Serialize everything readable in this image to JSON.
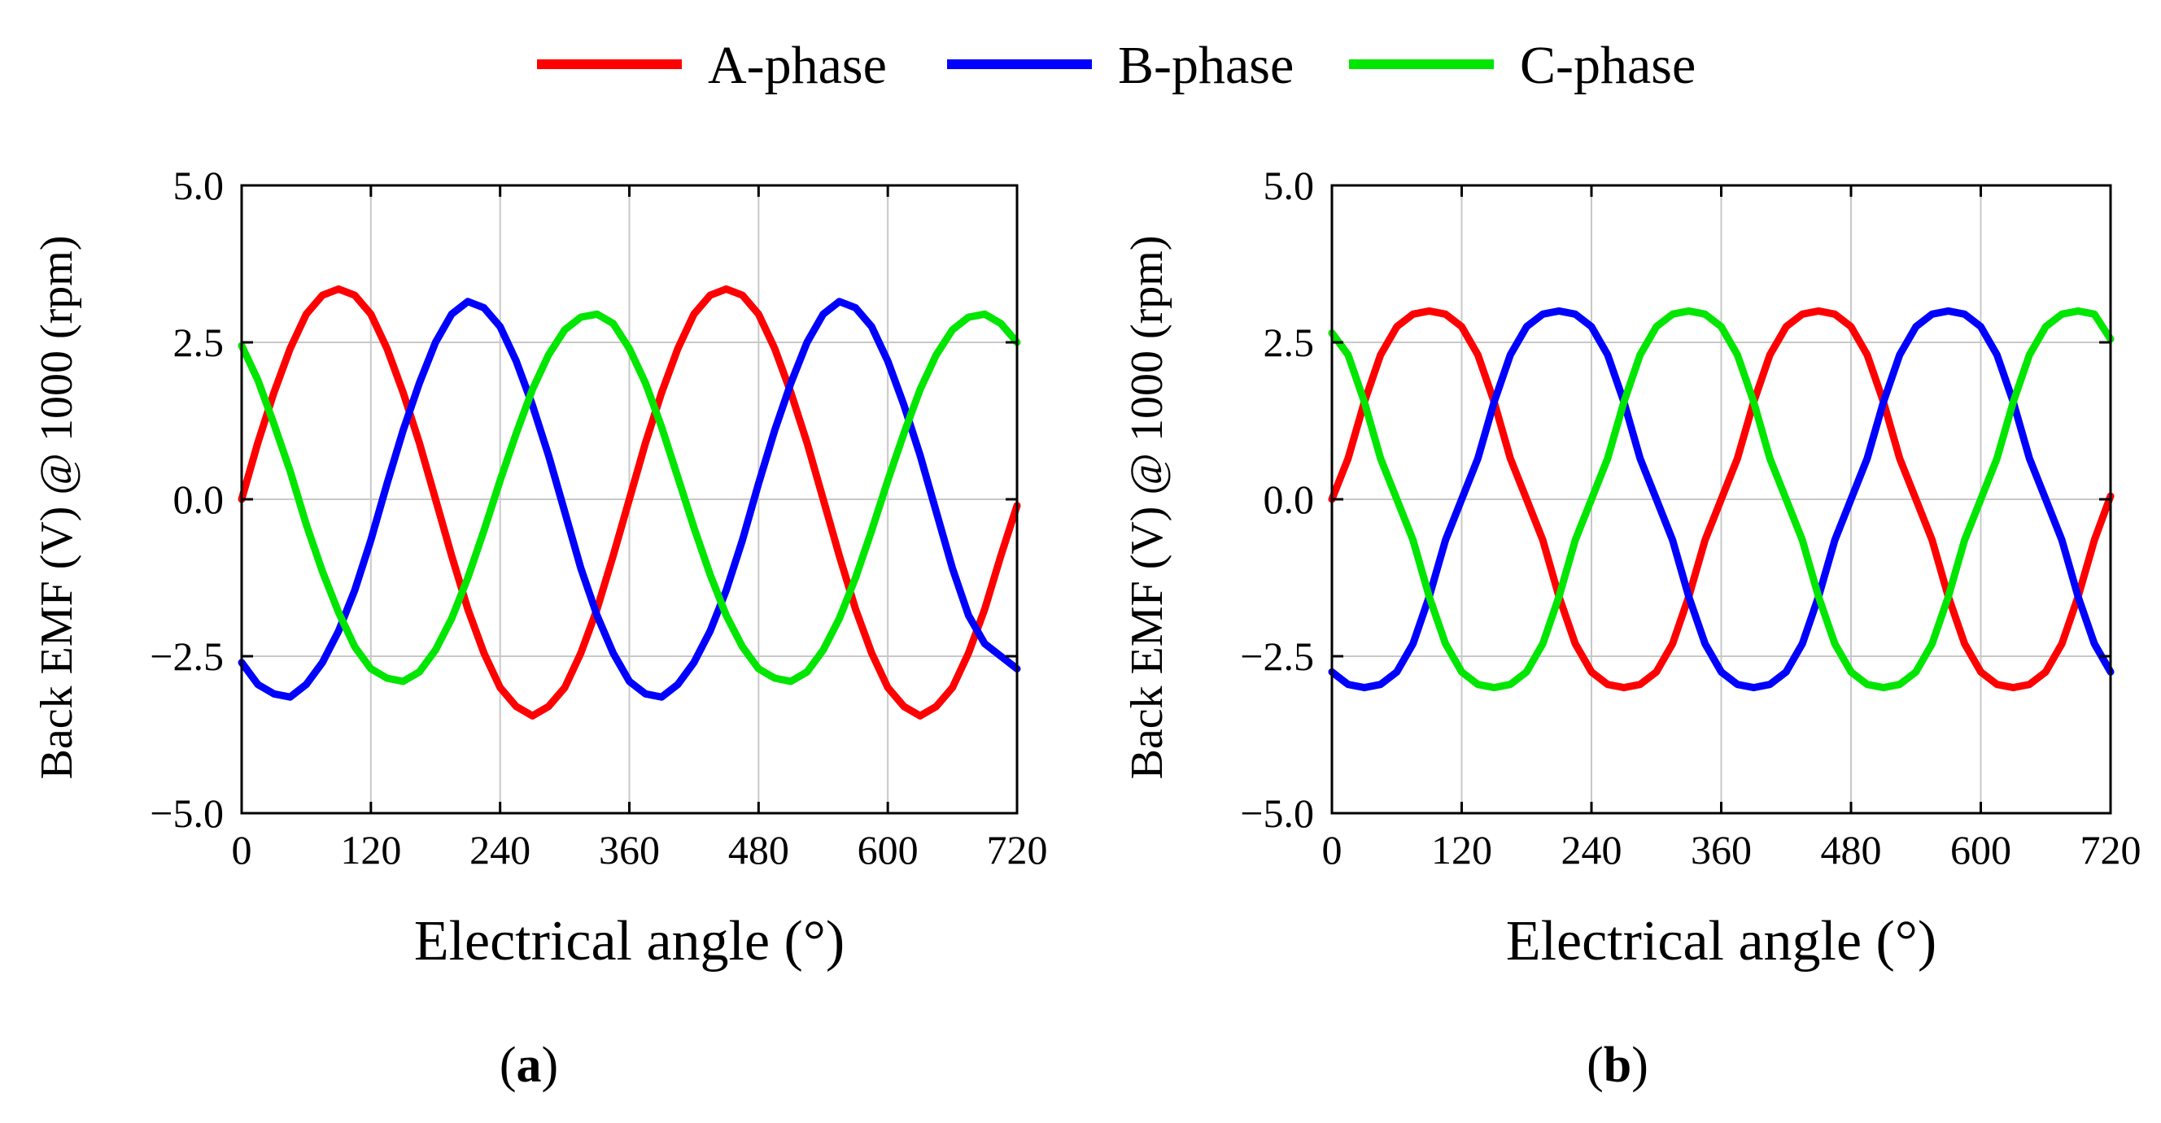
{
  "legend": {
    "items": [
      {
        "label": "A-phase",
        "color": "#ff0000"
      },
      {
        "label": "B-phase",
        "color": "#0000ff"
      },
      {
        "label": "C-phase",
        "color": "#00e600"
      }
    ]
  },
  "chart_data": [
    {
      "type": "line",
      "panel": "(a)",
      "panel_letter": "a",
      "title": "",
      "xlabel": "Electrical angle (°)",
      "ylabel": "Back EMF (V) @ 1000 (rpm)",
      "xlim": [
        0,
        720
      ],
      "ylim": [
        -5.0,
        5.0
      ],
      "xticks": [
        0,
        120,
        240,
        360,
        480,
        600,
        720
      ],
      "yticks": [
        -5.0,
        -2.5,
        0.0,
        2.5,
        5.0
      ],
      "xtick_labels": [
        "0",
        "120",
        "240",
        "360",
        "480",
        "600",
        "720"
      ],
      "ytick_labels": [
        "−5.0",
        "−2.5",
        "0.0",
        "2.5",
        "5.0"
      ],
      "grid": true,
      "series": [
        {
          "name": "A-phase",
          "color": "#ff0000",
          "x": [
            0,
            15,
            30,
            45,
            60,
            75,
            90,
            105,
            120,
            135,
            150,
            165,
            180,
            195,
            210,
            225,
            240,
            255,
            270,
            285,
            300,
            315,
            330,
            345,
            360,
            375,
            390,
            405,
            420,
            435,
            450,
            465,
            480,
            495,
            510,
            525,
            540,
            555,
            570,
            585,
            600,
            615,
            630,
            645,
            660,
            675,
            690,
            705,
            720
          ],
          "values": [
            0.0,
            0.9,
            1.7,
            2.4,
            2.95,
            3.25,
            3.35,
            3.25,
            2.95,
            2.4,
            1.7,
            0.9,
            0.0,
            -0.9,
            -1.75,
            -2.45,
            -3.0,
            -3.3,
            -3.45,
            -3.3,
            -3.0,
            -2.45,
            -1.75,
            -0.9,
            0.0,
            0.9,
            1.7,
            2.4,
            2.95,
            3.25,
            3.35,
            3.25,
            2.95,
            2.4,
            1.7,
            0.9,
            0.0,
            -0.9,
            -1.75,
            -2.45,
            -3.0,
            -3.3,
            -3.45,
            -3.3,
            -3.0,
            -2.45,
            -1.75,
            -0.9,
            -0.1
          ]
        },
        {
          "name": "B-phase",
          "color": "#0000ff",
          "x": [
            0,
            15,
            30,
            45,
            60,
            75,
            90,
            105,
            120,
            135,
            150,
            165,
            180,
            195,
            210,
            225,
            240,
            255,
            270,
            285,
            300,
            315,
            330,
            345,
            360,
            375,
            390,
            405,
            420,
            435,
            450,
            465,
            480,
            495,
            510,
            525,
            540,
            555,
            570,
            585,
            600,
            615,
            630,
            645,
            660,
            675,
            690,
            705,
            720
          ],
          "values": [
            -2.6,
            -2.95,
            -3.1,
            -3.15,
            -2.95,
            -2.6,
            -2.1,
            -1.45,
            -0.65,
            0.25,
            1.1,
            1.85,
            2.5,
            2.95,
            3.15,
            3.05,
            2.75,
            2.2,
            1.5,
            0.7,
            -0.2,
            -1.1,
            -1.85,
            -2.45,
            -2.9,
            -3.1,
            -3.15,
            -2.95,
            -2.6,
            -2.1,
            -1.45,
            -0.65,
            0.25,
            1.1,
            1.85,
            2.5,
            2.95,
            3.15,
            3.05,
            2.75,
            2.2,
            1.5,
            0.7,
            -0.2,
            -1.1,
            -1.85,
            -2.3,
            -2.5,
            -2.7
          ]
        },
        {
          "name": "C-phase",
          "color": "#00e600",
          "x": [
            0,
            15,
            30,
            45,
            60,
            75,
            90,
            105,
            120,
            135,
            150,
            165,
            180,
            195,
            210,
            225,
            240,
            255,
            270,
            285,
            300,
            315,
            330,
            345,
            360,
            375,
            390,
            405,
            420,
            435,
            450,
            465,
            480,
            495,
            510,
            525,
            540,
            555,
            570,
            585,
            600,
            615,
            630,
            645,
            660,
            675,
            690,
            705,
            720
          ],
          "values": [
            2.45,
            1.9,
            1.2,
            0.45,
            -0.4,
            -1.15,
            -1.8,
            -2.35,
            -2.7,
            -2.85,
            -2.9,
            -2.75,
            -2.4,
            -1.9,
            -1.25,
            -0.5,
            0.3,
            1.05,
            1.75,
            2.3,
            2.7,
            2.9,
            2.95,
            2.8,
            2.4,
            1.85,
            1.15,
            0.35,
            -0.45,
            -1.2,
            -1.85,
            -2.35,
            -2.7,
            -2.85,
            -2.9,
            -2.75,
            -2.4,
            -1.9,
            -1.25,
            -0.5,
            0.3,
            1.05,
            1.75,
            2.3,
            2.7,
            2.9,
            2.95,
            2.8,
            2.5
          ]
        }
      ]
    },
    {
      "type": "line",
      "panel": "(b)",
      "panel_letter": "b",
      "title": "",
      "xlabel": "Electrical angle (°)",
      "ylabel": "Back EMF (V) @ 1000 (rpm)",
      "xlim": [
        0,
        720
      ],
      "ylim": [
        -5.0,
        5.0
      ],
      "xticks": [
        0,
        120,
        240,
        360,
        480,
        600,
        720
      ],
      "yticks": [
        -5.0,
        -2.5,
        0.0,
        2.5,
        5.0
      ],
      "xtick_labels": [
        "0",
        "120",
        "240",
        "360",
        "480",
        "600",
        "720"
      ],
      "ytick_labels": [
        "−5.0",
        "−2.5",
        "0.0",
        "2.5",
        "5.0"
      ],
      "grid": true,
      "series": [
        {
          "name": "A-phase",
          "color": "#ff0000",
          "x": [
            0,
            15,
            30,
            45,
            60,
            75,
            90,
            105,
            120,
            135,
            150,
            165,
            180,
            195,
            210,
            225,
            240,
            255,
            270,
            285,
            300,
            315,
            330,
            345,
            360,
            375,
            390,
            405,
            420,
            435,
            450,
            465,
            480,
            495,
            510,
            525,
            540,
            555,
            570,
            585,
            600,
            615,
            630,
            645,
            660,
            675,
            690,
            705,
            720
          ],
          "values": [
            0.0,
            0.65,
            1.55,
            2.3,
            2.75,
            2.95,
            3.0,
            2.95,
            2.75,
            2.3,
            1.55,
            0.65,
            0.0,
            -0.65,
            -1.55,
            -2.3,
            -2.75,
            -2.95,
            -3.0,
            -2.95,
            -2.75,
            -2.3,
            -1.55,
            -0.65,
            0.0,
            0.65,
            1.55,
            2.3,
            2.75,
            2.95,
            3.0,
            2.95,
            2.75,
            2.3,
            1.55,
            0.65,
            0.0,
            -0.65,
            -1.55,
            -2.3,
            -2.75,
            -2.95,
            -3.0,
            -2.95,
            -2.75,
            -2.3,
            -1.55,
            -0.65,
            0.05
          ]
        },
        {
          "name": "B-phase",
          "color": "#0000ff",
          "x": [
            0,
            15,
            30,
            45,
            60,
            75,
            90,
            105,
            120,
            135,
            150,
            165,
            180,
            195,
            210,
            225,
            240,
            255,
            270,
            285,
            300,
            315,
            330,
            345,
            360,
            375,
            390,
            405,
            420,
            435,
            450,
            465,
            480,
            495,
            510,
            525,
            540,
            555,
            570,
            585,
            600,
            615,
            630,
            645,
            660,
            675,
            690,
            705,
            720
          ],
          "values": [
            -2.75,
            -2.95,
            -3.0,
            -2.95,
            -2.75,
            -2.3,
            -1.55,
            -0.65,
            0.0,
            0.65,
            1.55,
            2.3,
            2.75,
            2.95,
            3.0,
            2.95,
            2.75,
            2.3,
            1.55,
            0.65,
            0.0,
            -0.65,
            -1.55,
            -2.3,
            -2.75,
            -2.95,
            -3.0,
            -2.95,
            -2.75,
            -2.3,
            -1.55,
            -0.65,
            0.0,
            0.65,
            1.55,
            2.3,
            2.75,
            2.95,
            3.0,
            2.95,
            2.75,
            2.3,
            1.55,
            0.65,
            0.0,
            -0.65,
            -1.55,
            -2.3,
            -2.75
          ]
        },
        {
          "name": "C-phase",
          "color": "#00e600",
          "x": [
            0,
            15,
            30,
            45,
            60,
            75,
            90,
            105,
            120,
            135,
            150,
            165,
            180,
            195,
            210,
            225,
            240,
            255,
            270,
            285,
            300,
            315,
            330,
            345,
            360,
            375,
            390,
            405,
            420,
            435,
            450,
            465,
            480,
            495,
            510,
            525,
            540,
            555,
            570,
            585,
            600,
            615,
            630,
            645,
            660,
            675,
            690,
            705,
            720
          ],
          "values": [
            2.65,
            2.3,
            1.55,
            0.65,
            0.0,
            -0.65,
            -1.55,
            -2.3,
            -2.75,
            -2.95,
            -3.0,
            -2.95,
            -2.75,
            -2.3,
            -1.55,
            -0.65,
            0.0,
            0.65,
            1.55,
            2.3,
            2.75,
            2.95,
            3.0,
            2.95,
            2.75,
            2.3,
            1.55,
            0.65,
            0.0,
            -0.65,
            -1.55,
            -2.3,
            -2.75,
            -2.95,
            -3.0,
            -2.95,
            -2.75,
            -2.3,
            -1.55,
            -0.65,
            0.0,
            0.65,
            1.55,
            2.3,
            2.75,
            2.95,
            3.0,
            2.95,
            2.55
          ]
        }
      ]
    }
  ]
}
